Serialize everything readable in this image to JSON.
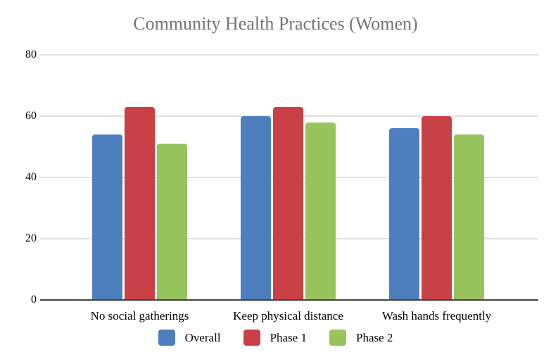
{
  "chart_data": {
    "type": "bar",
    "title": "Community Health Practices (Women)",
    "categories": [
      "No social gatherings",
      "Keep physical distance",
      "Wash hands frequently"
    ],
    "series": [
      {
        "name": "Overall",
        "color": "#4D7EBE",
        "values": [
          54,
          60,
          56
        ]
      },
      {
        "name": "Phase 1",
        "color": "#CA4047",
        "values": [
          63,
          63,
          60
        ]
      },
      {
        "name": "Phase 2",
        "color": "#98C45E",
        "values": [
          51,
          58,
          54
        ]
      }
    ],
    "xlabel": "",
    "ylabel": "",
    "ylim": [
      0,
      80
    ],
    "yticks": [
      0,
      20,
      40,
      60,
      80
    ],
    "grid": true,
    "legend_position": "bottom"
  },
  "colors": {
    "title_text": "#757575",
    "tick_text": "#000000",
    "gridline": "#E0E0E0",
    "axis_line": "#424242",
    "background": "#FFFFFF"
  }
}
